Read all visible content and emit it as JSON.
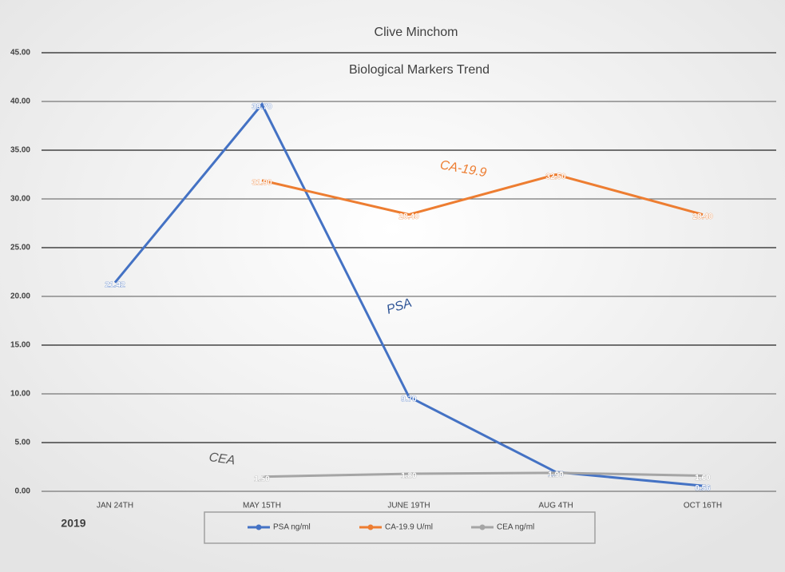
{
  "chart_data": {
    "type": "line",
    "title": "Clive Minchom",
    "subtitle": "Biological Markers Trend",
    "categories": [
      "JAN 24TH",
      "MAY 15TH",
      "JUNE 19TH",
      "AUG 4TH",
      "OCT 16TH"
    ],
    "series": [
      {
        "name": "PSA ng/ml",
        "color": "#4472c4",
        "values": [
          21.42,
          39.7,
          9.7,
          1.98,
          0.56
        ],
        "value_labels": [
          "21.42",
          "39.70",
          "9.70",
          "1.98",
          "0.56"
        ]
      },
      {
        "name": "CA-19.9 U/ml",
        "color": "#ed7d31",
        "values": [
          null,
          31.9,
          28.4,
          32.5,
          28.4
        ],
        "value_labels": [
          null,
          "31.90",
          "28.40",
          "32.50",
          "28.40"
        ]
      },
      {
        "name": "CEA ng/ml",
        "color": "#a5a5a5",
        "values": [
          null,
          1.5,
          1.8,
          1.9,
          1.6
        ],
        "value_labels": [
          null,
          "1.50",
          "1.80",
          "1.90",
          "1.60"
        ]
      }
    ],
    "ylim": [
      0,
      45
    ],
    "yticks": [
      {
        "value": 0,
        "label": "0.00"
      },
      {
        "value": 5,
        "label": "5.00"
      },
      {
        "value": 10,
        "label": "10.00"
      },
      {
        "value": 15,
        "label": "15.00"
      },
      {
        "value": 20,
        "label": "20.00"
      },
      {
        "value": 25,
        "label": "25.00"
      },
      {
        "value": 30,
        "label": "30.00"
      },
      {
        "value": 35,
        "label": "35.00"
      },
      {
        "value": 40,
        "label": "40.00"
      },
      {
        "value": 45,
        "label": "45.00"
      }
    ],
    "grid": true,
    "legend": "bottom",
    "annotations": [
      "CA-19.9",
      "PSA",
      "CEA",
      "2019"
    ]
  }
}
